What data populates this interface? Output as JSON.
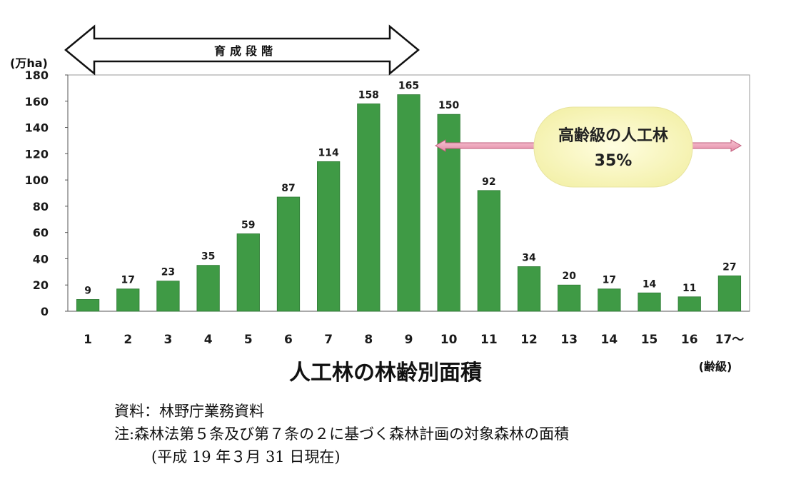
{
  "chart_data": {
    "type": "bar",
    "title": "人工林の林齢別面積",
    "ylabel": "(万ha)",
    "xlabel": "(齢級)",
    "ylim": [
      0,
      180
    ],
    "yticks": [
      0,
      20,
      40,
      60,
      80,
      100,
      120,
      140,
      160,
      180
    ],
    "categories": [
      "1",
      "2",
      "3",
      "4",
      "5",
      "6",
      "7",
      "8",
      "9",
      "10",
      "11",
      "12",
      "13",
      "14",
      "15",
      "16",
      "17〜"
    ],
    "values": [
      9,
      17,
      23,
      35,
      59,
      87,
      114,
      158,
      165,
      150,
      92,
      34,
      20,
      17,
      14,
      11,
      27
    ],
    "bar_color": "#3f9a45",
    "annotations": {
      "stage_label": "育成段階",
      "callout_line1": "高齢級の人工林",
      "callout_line2": "35%"
    },
    "grid": false
  },
  "notes": {
    "source": "資料：林野庁業務資料",
    "note": "注:森林法第５条及び第７条の２に基づく森林計画の対象森林の面積",
    "date": "(平成 19 年３月 31 日現在)"
  }
}
